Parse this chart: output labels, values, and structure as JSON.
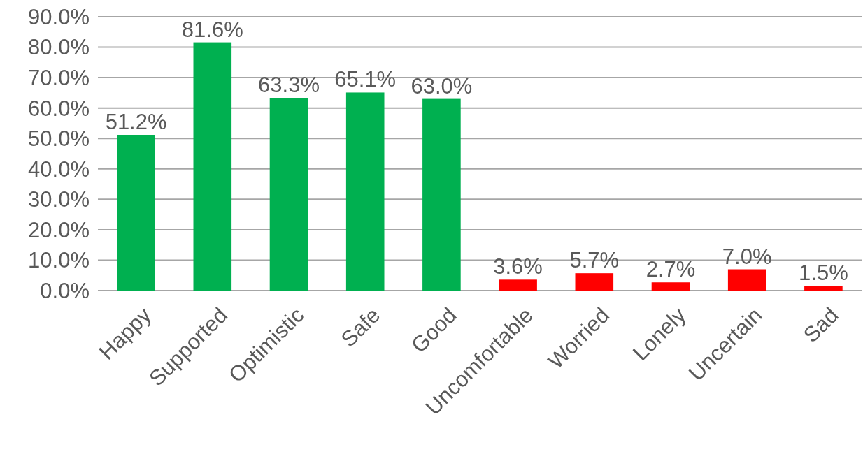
{
  "chart_data": {
    "type": "bar",
    "categories": [
      "Happy",
      "Supported",
      "Optimistic",
      "Safe",
      "Good",
      "Uncomfortable",
      "Worried",
      "Lonely",
      "Uncertain",
      "Sad"
    ],
    "values": [
      51.2,
      81.6,
      63.3,
      65.1,
      63.0,
      3.6,
      5.7,
      2.7,
      7.0,
      1.5
    ],
    "colors": [
      "#00b050",
      "#00b050",
      "#00b050",
      "#00b050",
      "#00b050",
      "#ff0000",
      "#ff0000",
      "#ff0000",
      "#ff0000",
      "#ff0000"
    ],
    "value_labels": [
      "51.2%",
      "81.6%",
      "63.3%",
      "65.1%",
      "63.0%",
      "3.6%",
      "5.7%",
      "2.7%",
      "7.0%",
      "1.5%"
    ],
    "ylim": [
      0,
      90
    ],
    "yticks": [
      {
        "value": 0,
        "label": "0.0%"
      },
      {
        "value": 10,
        "label": "10.0%"
      },
      {
        "value": 20,
        "label": "20.0%"
      },
      {
        "value": 30,
        "label": "30.0%"
      },
      {
        "value": 40,
        "label": "40.0%"
      },
      {
        "value": 50,
        "label": "50.0%"
      },
      {
        "value": 60,
        "label": "60.0%"
      },
      {
        "value": 70,
        "label": "70.0%"
      },
      {
        "value": 80,
        "label": "80.0%"
      },
      {
        "value": 90,
        "label": "90.0%"
      }
    ],
    "grid": "y"
  }
}
